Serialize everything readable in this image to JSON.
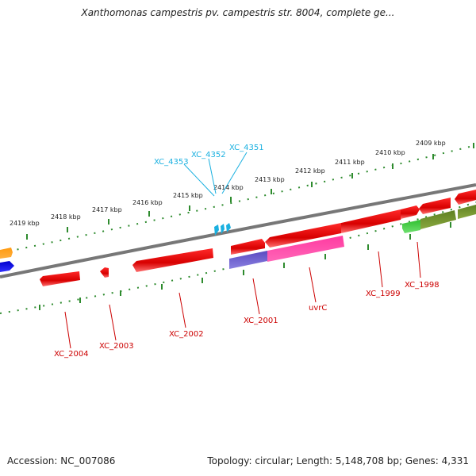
{
  "title": "Xanthomonas campestris pv. campestris str. 8004, complete ge...",
  "footer": {
    "accession": "Accession: NC_007086",
    "summary": "Topology: circular; Length: 5,148,708 bp; Genes: 4,331"
  },
  "colors": {
    "backbone": "#888888",
    "ticks": "#2e8b2e",
    "gene_red": "#e00000",
    "gene_magenta": "#ff1a8c",
    "gene_purple": "#6a5acd",
    "gene_green": "#3cc83c",
    "gene_olive": "#6b8e23",
    "gene_orange": "#ff8c00",
    "gene_blue": "#0000dd",
    "label_red": "#cc0000",
    "label_cyan": "#1ab0e0"
  },
  "scale": {
    "unit": "kbp",
    "labels": [
      "2419 kbp",
      "2418 kbp",
      "2417 kbp",
      "2416 kbp",
      "2415 kbp",
      "2414 kbp",
      "2413 kbp",
      "2412 kbp",
      "2411 kbp",
      "2410 kbp",
      "2409 kbp"
    ]
  },
  "features": {
    "top_labels": [
      "XC_4353",
      "XC_4352",
      "XC_4351"
    ],
    "bottom_labels": [
      "XC_2004",
      "XC_2003",
      "XC_2002",
      "XC_2001",
      "uvrC",
      "XC_1999",
      "XC_1998"
    ]
  }
}
